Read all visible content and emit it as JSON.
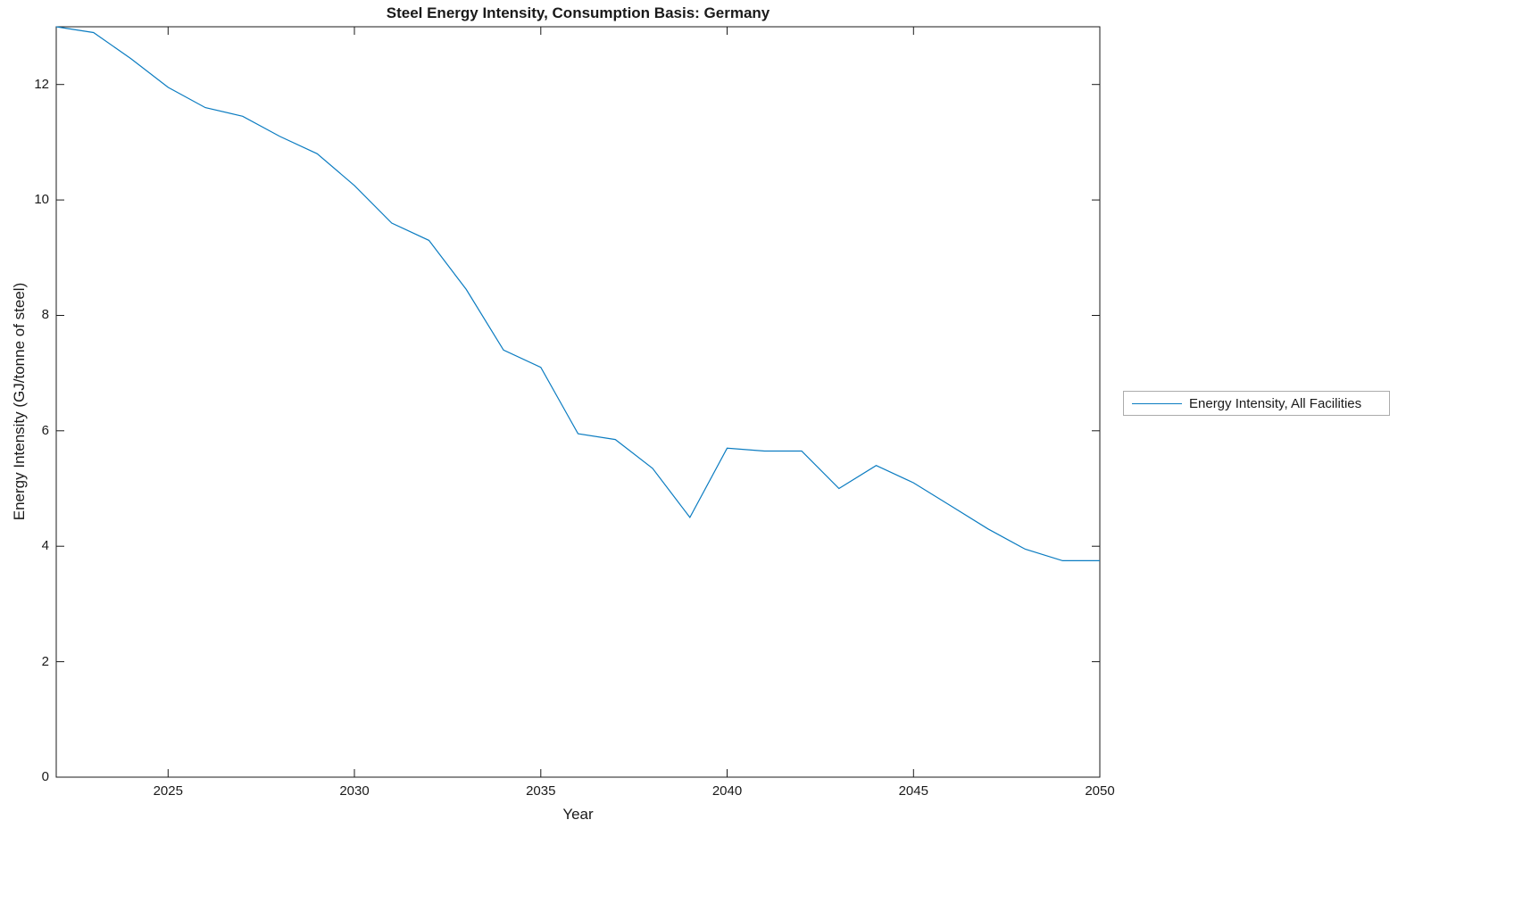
{
  "chart_data": {
    "type": "line",
    "title": "Steel Energy Intensity, Consumption Basis: Germany",
    "xlabel": "Year",
    "ylabel": "Energy Intensity (GJ/tonne of steel)",
    "xlim": [
      2022,
      2050
    ],
    "ylim": [
      0,
      13
    ],
    "x_ticks": [
      2025,
      2030,
      2035,
      2040,
      2045,
      2050
    ],
    "y_ticks": [
      0,
      2,
      4,
      6,
      8,
      10,
      12
    ],
    "grid": false,
    "legend_position": "outside-right-middle",
    "line_color": "#0b7cc1",
    "axis_color": "#1a1a1a",
    "x": [
      2022,
      2023,
      2024,
      2025,
      2026,
      2027,
      2028,
      2029,
      2030,
      2031,
      2032,
      2033,
      2034,
      2035,
      2036,
      2037,
      2038,
      2039,
      2040,
      2041,
      2042,
      2043,
      2044,
      2045,
      2046,
      2047,
      2048,
      2049,
      2050
    ],
    "series": [
      {
        "name": "Energy Intensity, All Facilities",
        "values": [
          13.0,
          12.9,
          12.45,
          11.95,
          11.6,
          11.45,
          11.1,
          10.8,
          10.25,
          9.6,
          9.3,
          8.45,
          7.4,
          7.1,
          5.95,
          5.85,
          5.35,
          4.5,
          5.7,
          5.65,
          5.65,
          5.0,
          5.4,
          5.1,
          4.7,
          4.3,
          3.95,
          3.75,
          3.75
        ]
      }
    ]
  }
}
